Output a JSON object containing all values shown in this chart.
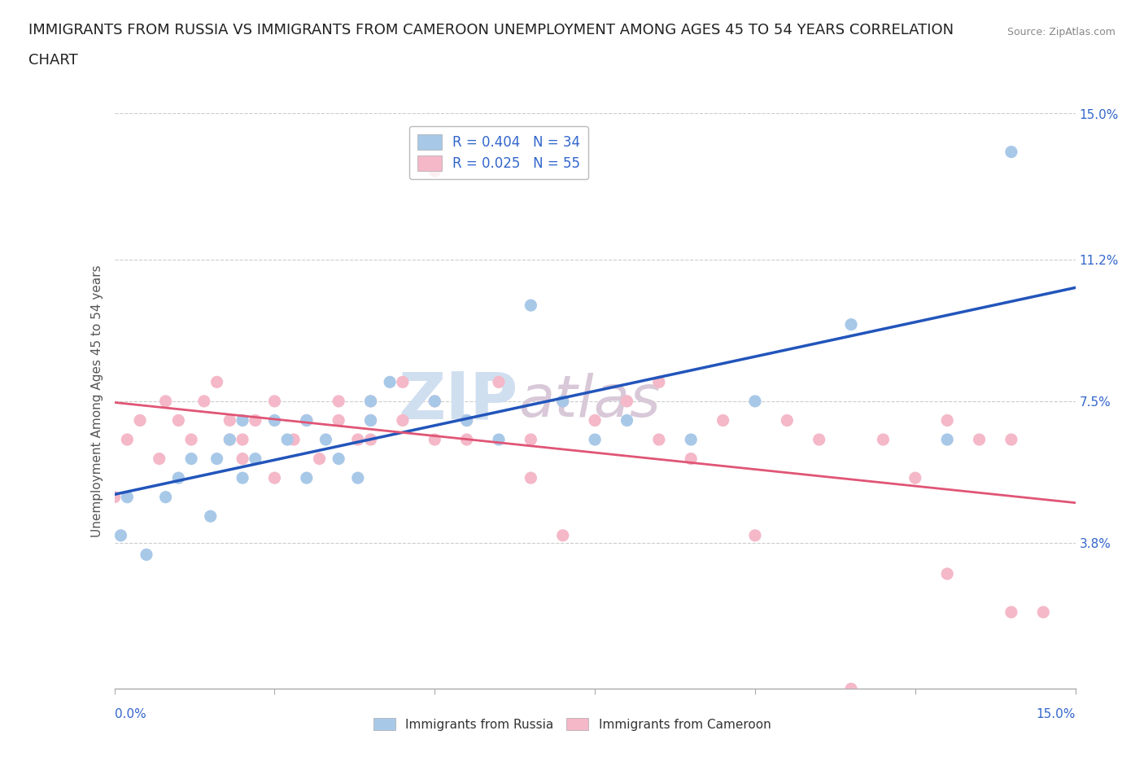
{
  "title_line1": "IMMIGRANTS FROM RUSSIA VS IMMIGRANTS FROM CAMEROON UNEMPLOYMENT AMONG AGES 45 TO 54 YEARS CORRELATION",
  "title_line2": "CHART",
  "source": "Source: ZipAtlas.com",
  "ylabel": "Unemployment Among Ages 45 to 54 years",
  "xlim": [
    0,
    0.15
  ],
  "ylim": [
    0,
    0.15
  ],
  "xtick_positions": [
    0.0,
    0.025,
    0.05,
    0.075,
    0.1,
    0.125,
    0.15
  ],
  "ytick_right_labels": [
    "15.0%",
    "11.2%",
    "7.5%",
    "3.8%"
  ],
  "ytick_right_values": [
    0.15,
    0.112,
    0.075,
    0.038
  ],
  "watermark_zip": "ZIP",
  "watermark_atlas": "atlas",
  "russia_color": "#a8c8e8",
  "cameroon_color": "#f4b8c8",
  "russia_line_color": "#2255bb",
  "cameroon_line_color": "#e05575",
  "russia_R": 0.404,
  "russia_N": 34,
  "cameroon_R": 0.025,
  "cameroon_N": 55,
  "russia_x": [
    0.001,
    0.002,
    0.005,
    0.008,
    0.01,
    0.012,
    0.015,
    0.016,
    0.018,
    0.02,
    0.02,
    0.022,
    0.025,
    0.027,
    0.03,
    0.03,
    0.033,
    0.035,
    0.038,
    0.04,
    0.04,
    0.043,
    0.05,
    0.055,
    0.06,
    0.065,
    0.07,
    0.075,
    0.08,
    0.09,
    0.1,
    0.115,
    0.13,
    0.14
  ],
  "russia_y": [
    0.04,
    0.05,
    0.035,
    0.05,
    0.055,
    0.06,
    0.045,
    0.06,
    0.065,
    0.055,
    0.07,
    0.06,
    0.07,
    0.065,
    0.055,
    0.07,
    0.065,
    0.06,
    0.055,
    0.07,
    0.075,
    0.08,
    0.075,
    0.07,
    0.065,
    0.1,
    0.075,
    0.065,
    0.07,
    0.065,
    0.075,
    0.095,
    0.065,
    0.14
  ],
  "cameroon_x": [
    0.0,
    0.002,
    0.004,
    0.007,
    0.008,
    0.01,
    0.012,
    0.014,
    0.016,
    0.018,
    0.018,
    0.02,
    0.02,
    0.022,
    0.025,
    0.025,
    0.028,
    0.03,
    0.032,
    0.035,
    0.035,
    0.038,
    0.04,
    0.04,
    0.04,
    0.045,
    0.045,
    0.05,
    0.05,
    0.05,
    0.055,
    0.055,
    0.06,
    0.065,
    0.065,
    0.07,
    0.07,
    0.075,
    0.08,
    0.085,
    0.085,
    0.09,
    0.095,
    0.1,
    0.105,
    0.11,
    0.115,
    0.12,
    0.125,
    0.13,
    0.13,
    0.135,
    0.14,
    0.14,
    0.145
  ],
  "cameroon_y": [
    0.05,
    0.065,
    0.07,
    0.06,
    0.075,
    0.07,
    0.065,
    0.075,
    0.08,
    0.065,
    0.07,
    0.06,
    0.065,
    0.07,
    0.055,
    0.075,
    0.065,
    0.07,
    0.06,
    0.07,
    0.075,
    0.065,
    0.065,
    0.07,
    0.075,
    0.07,
    0.08,
    0.065,
    0.075,
    0.135,
    0.065,
    0.07,
    0.08,
    0.055,
    0.065,
    0.075,
    0.04,
    0.07,
    0.075,
    0.065,
    0.08,
    0.06,
    0.07,
    0.04,
    0.07,
    0.065,
    0.0,
    0.065,
    0.055,
    0.03,
    0.07,
    0.065,
    0.02,
    0.065,
    0.02
  ],
  "background_color": "#ffffff",
  "grid_color": "#cccccc",
  "title_fontsize": 13,
  "axis_label_fontsize": 11,
  "tick_fontsize": 11,
  "legend_fontsize": 12
}
